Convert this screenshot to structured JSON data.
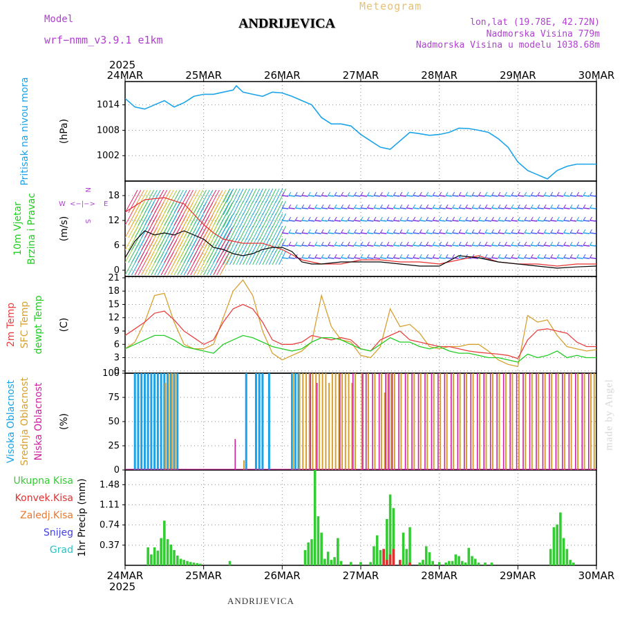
{
  "header": {
    "model_label": "Model",
    "model_name": "wrf−nmm_v3.9.1  e1km",
    "station": "ANDRIJEVICA",
    "product": "Meteogram",
    "lonlat": "lon,lat (19.78E, 42.72N)",
    "elevation": "Nadmorska Visina 779m",
    "model_elevation": "Nadmorska Visina u modelu 1038.68m",
    "footer_station": "ANDRIJEVICA",
    "watermark": "made by Angel"
  },
  "time_axis": {
    "year": "2025",
    "ticks": [
      "24MAR",
      "25MAR",
      "26MAR",
      "27MAR",
      "28MAR",
      "29MAR",
      "30MAR"
    ],
    "hours_total": 144
  },
  "colors": {
    "pressure": "#1aa3e8",
    "wind_speed": "#000000",
    "wind_gust": "#e83030",
    "temp_2m": "#e84040",
    "temp_sfc": "#d8a030",
    "temp_dew": "#22cc22",
    "cloud_high": "#1aa3e8",
    "cloud_mid": "#d8a030",
    "cloud_low": "#d020a0",
    "precip_total": "#33cc33",
    "precip_conv": "#e03030",
    "precip_frozen": "#e87830",
    "precip_snow": "#4040e0",
    "precip_hail": "#30c0c0",
    "label_model": "#b040d0"
  },
  "chart_data": [
    {
      "type": "line",
      "title": "",
      "ylabel": "(hPa)",
      "side_label": [
        "Pritisak na nivou mora"
      ],
      "ylim": [
        996,
        1019.5
      ],
      "yticks": [
        1002,
        1008,
        1014
      ],
      "grid": true,
      "series": [
        {
          "name": "Pritisak na nivou mora",
          "x": [
            0,
            3,
            6,
            9,
            12,
            15,
            18,
            21,
            24,
            27,
            30,
            33,
            34,
            36,
            39,
            42,
            45,
            48,
            51,
            54,
            57,
            60,
            63,
            66,
            69,
            72,
            75,
            78,
            81,
            84,
            87,
            90,
            93,
            96,
            99,
            102,
            105,
            108,
            111,
            114,
            117,
            120,
            123,
            126,
            129,
            132,
            135,
            138,
            141,
            144
          ],
          "y": [
            1015.5,
            1013.5,
            1013,
            1014,
            1015,
            1013.5,
            1014.5,
            1016,
            1016.5,
            1016.5,
            1017,
            1017.5,
            1018.5,
            1017,
            1016.5,
            1016,
            1017,
            1016.8,
            1016,
            1015,
            1014,
            1011,
            1009.5,
            1009.5,
            1009,
            1007,
            1005.5,
            1004,
            1003.5,
            1005.5,
            1007.5,
            1007.2,
            1006.8,
            1007,
            1007.5,
            1008.5,
            1008.4,
            1008,
            1007.5,
            1006,
            1004,
            1000.5,
            998.5,
            997.5,
            996.5,
            998.5,
            999.5,
            1000,
            1000,
            1000
          ]
        }
      ]
    },
    {
      "type": "line",
      "title": "",
      "ylabel": "(m/s)",
      "side_label": [
        "10m Vjetar",
        "Brzina i Pravac"
      ],
      "compass": {
        "n": "N",
        "s": "S",
        "w": "W",
        "e": "E"
      },
      "ylim": [
        -1.5,
        21.5
      ],
      "yticks": [
        0,
        6,
        12,
        18
      ],
      "grid": true,
      "series": [
        {
          "name": "wind speed",
          "x": [
            0,
            3,
            6,
            9,
            12,
            15,
            18,
            21,
            24,
            27,
            30,
            33,
            36,
            39,
            42,
            45,
            48,
            51,
            54,
            57,
            60,
            66,
            72,
            78,
            84,
            90,
            96,
            102,
            108,
            114,
            120,
            126,
            132,
            138,
            144
          ],
          "y": [
            3,
            7,
            9.5,
            8.5,
            9,
            8.5,
            9.5,
            8.5,
            7.5,
            5.5,
            5,
            4,
            3.5,
            4,
            5,
            5.5,
            5.5,
            4.5,
            2,
            1.5,
            1.5,
            2,
            2,
            2,
            1.5,
            1,
            1,
            3.5,
            3,
            2,
            1.5,
            1,
            0.5,
            0.8,
            1
          ]
        },
        {
          "name": "gust",
          "x": [
            0,
            6,
            12,
            18,
            24,
            27,
            30,
            36,
            42,
            48,
            54,
            60,
            66,
            72,
            78,
            84,
            90,
            96,
            102,
            108,
            114,
            120,
            126,
            132,
            138,
            144
          ],
          "y": [
            14,
            17,
            17.5,
            16,
            11,
            9,
            7.5,
            6.5,
            6.5,
            5,
            2.5,
            1.5,
            1.5,
            2.5,
            2.5,
            2,
            2,
            1.5,
            2.5,
            3.5,
            2,
            1.5,
            1.5,
            1,
            1.5,
            1.5
          ]
        }
      ]
    },
    {
      "type": "line",
      "title": "",
      "ylabel": "(C)",
      "side_label": [
        "2m Temp",
        "SFC Temp",
        "dewpt Temp"
      ],
      "ylim": [
        -0.5,
        21.3
      ],
      "yticks": [
        0,
        3,
        6,
        9,
        12,
        15,
        18,
        21
      ],
      "grid": true,
      "series": [
        {
          "name": "2m Temp",
          "x": [
            0,
            3,
            6,
            9,
            12,
            15,
            18,
            21,
            24,
            27,
            30,
            33,
            36,
            39,
            42,
            45,
            48,
            51,
            54,
            57,
            60,
            63,
            66,
            69,
            72,
            75,
            78,
            81,
            84,
            87,
            90,
            93,
            96,
            99,
            102,
            105,
            108,
            111,
            114,
            117,
            120,
            123,
            126,
            129,
            132,
            135,
            138,
            141,
            144
          ],
          "y": [
            8,
            9.5,
            11,
            13,
            13.5,
            11.5,
            9,
            7.5,
            6,
            7,
            11,
            14,
            15,
            14,
            11,
            7,
            6,
            6,
            6.5,
            8,
            7.5,
            7,
            7.5,
            7,
            5,
            4.5,
            7,
            8,
            9,
            7,
            6.5,
            6,
            5.5,
            5.5,
            5,
            4.5,
            4.2,
            4,
            3.8,
            3.5,
            2.8,
            7,
            9.2,
            9.5,
            9,
            8.5,
            6.5,
            5.5,
            5.5
          ]
        },
        {
          "name": "SFC Temp",
          "x": [
            0,
            3,
            6,
            9,
            12,
            15,
            18,
            21,
            24,
            27,
            30,
            33,
            36,
            39,
            42,
            45,
            48,
            51,
            54,
            57,
            60,
            63,
            66,
            69,
            72,
            75,
            78,
            81,
            84,
            87,
            90,
            93,
            96,
            99,
            102,
            105,
            108,
            111,
            114,
            117,
            120,
            123,
            126,
            129,
            132,
            135,
            138,
            141,
            144
          ],
          "y": [
            5,
            6.5,
            11,
            17,
            17.5,
            11,
            6,
            5,
            5,
            6,
            12,
            18,
            20.5,
            17,
            9,
            4,
            2.5,
            3.5,
            4.5,
            6.5,
            17,
            10,
            7,
            6.5,
            3.5,
            3,
            5.5,
            14,
            10,
            10.5,
            8.5,
            5.5,
            5,
            5.5,
            5.5,
            6,
            6,
            4.5,
            2.5,
            1.5,
            1,
            12.5,
            11,
            11.5,
            8,
            5.5,
            5,
            4.5,
            4.8
          ]
        },
        {
          "name": "dewpt Temp",
          "x": [
            0,
            3,
            6,
            9,
            12,
            15,
            18,
            21,
            24,
            27,
            30,
            33,
            36,
            39,
            42,
            45,
            48,
            51,
            54,
            57,
            60,
            63,
            66,
            69,
            72,
            75,
            78,
            81,
            84,
            87,
            90,
            93,
            96,
            99,
            102,
            105,
            108,
            111,
            114,
            117,
            120,
            123,
            126,
            129,
            132,
            135,
            138,
            141,
            144
          ],
          "y": [
            5,
            6,
            7,
            8,
            8,
            7,
            5.5,
            5,
            4.5,
            4,
            6,
            7,
            8,
            7.5,
            6.5,
            5.5,
            5,
            4.5,
            5,
            6.5,
            7.5,
            7.5,
            7,
            6,
            5,
            4.5,
            6,
            7.5,
            6.5,
            6.5,
            5.5,
            5,
            5.5,
            4.5,
            4,
            4,
            3.5,
            3,
            3,
            2.5,
            2,
            3.8,
            3,
            3.5,
            4.5,
            3,
            3.5,
            3,
            3
          ]
        }
      ]
    },
    {
      "type": "bar",
      "title": "",
      "ylabel": "(%)",
      "side_label": [
        "Visoka Oblacnost",
        "Srednja Oblacnost",
        "Niska Oblacnost"
      ],
      "ylim": [
        0,
        100
      ],
      "yticks": [
        0,
        25,
        50,
        75,
        100
      ],
      "grid": true,
      "series": [
        {
          "name": "Visoka Oblacnost",
          "x": [
            3,
            4,
            5,
            6,
            7,
            8,
            9,
            10,
            11,
            12,
            13,
            14,
            15,
            16,
            37,
            40,
            41,
            42,
            44,
            51,
            52,
            53
          ],
          "y": [
            100,
            100,
            100,
            100,
            100,
            100,
            100,
            100,
            100,
            100,
            100,
            100,
            100,
            100,
            100,
            100,
            100,
            100,
            100,
            100,
            100,
            100
          ]
        },
        {
          "name": "Srednja Oblacnost",
          "x": [
            12,
            13,
            14,
            15,
            36,
            51,
            53,
            54,
            55,
            56,
            57,
            58,
            59,
            60,
            61,
            62,
            63,
            64,
            65,
            66,
            67,
            68,
            69,
            70,
            72,
            74,
            76,
            78,
            79,
            80,
            81,
            82,
            84,
            86,
            88,
            90,
            92,
            94,
            96,
            98,
            100,
            102,
            104,
            106,
            108,
            110,
            112,
            114,
            116,
            118,
            120,
            122,
            124,
            126,
            128,
            130,
            132,
            134,
            136,
            138,
            140,
            142,
            143
          ],
          "y": [
            90,
            100,
            100,
            100,
            10,
            100,
            100,
            100,
            100,
            100,
            100,
            100,
            100,
            100,
            100,
            90,
            100,
            100,
            100,
            100,
            100,
            100,
            90,
            100,
            100,
            100,
            100,
            100,
            80,
            100,
            100,
            100,
            100,
            100,
            100,
            100,
            100,
            100,
            100,
            100,
            100,
            100,
            100,
            100,
            100,
            100,
            100,
            100,
            100,
            100,
            100,
            100,
            100,
            100,
            100,
            100,
            100,
            100,
            100,
            100,
            100,
            100,
            100
          ]
        },
        {
          "name": "Niska Oblacnost",
          "x": [
            33,
            56,
            58,
            65,
            69,
            72,
            73,
            75,
            77,
            79,
            80,
            81,
            83,
            85,
            87,
            89,
            91,
            93,
            95,
            97,
            99,
            101,
            103,
            105,
            107,
            109,
            111,
            113,
            115,
            117,
            119,
            121,
            123,
            125,
            127,
            129,
            131,
            133,
            135,
            137,
            139,
            141
          ],
          "y": [
            32,
            100,
            90,
            100,
            100,
            100,
            100,
            100,
            100,
            100,
            100,
            100,
            100,
            100,
            100,
            100,
            100,
            100,
            100,
            100,
            100,
            100,
            100,
            100,
            100,
            100,
            100,
            100,
            100,
            100,
            100,
            100,
            100,
            100,
            100,
            100,
            100,
            100,
            100,
            100,
            100,
            100
          ]
        }
      ]
    },
    {
      "type": "bar",
      "title": "",
      "ylabel": "1hr Precip (mm)",
      "side_label": [
        "Ukupna Kisa",
        "Konvek.Kisa",
        "Zaledj.Kisa",
        "Snijeg",
        "Grad"
      ],
      "ylim": [
        0,
        1.75
      ],
      "yticks": [
        0.37,
        0.74,
        1.11,
        1.48
      ],
      "grid": true,
      "series": [
        {
          "name": "Ukupna Kisa",
          "x": [
            7,
            8,
            9,
            10,
            11,
            12,
            13,
            14,
            15,
            16,
            17,
            18,
            19,
            20,
            21,
            22,
            23,
            32,
            55,
            56,
            57,
            58,
            59,
            60,
            61,
            62,
            63,
            64,
            65,
            66,
            69,
            72,
            75,
            76,
            77,
            78,
            79,
            80,
            81,
            82,
            85,
            86,
            87,
            90,
            91,
            92,
            93,
            94,
            96,
            98,
            99,
            100,
            101,
            102,
            103,
            104,
            105,
            106,
            107,
            108,
            110,
            112,
            130,
            131,
            132,
            133,
            134,
            135,
            136,
            137
          ],
          "y": [
            0.33,
            0.2,
            0.33,
            0.27,
            0.5,
            0.82,
            0.48,
            0.38,
            0.28,
            0.18,
            0.12,
            0.1,
            0.08,
            0.06,
            0.05,
            0.04,
            0.03,
            0.08,
            0.28,
            0.42,
            0.48,
            1.75,
            0.9,
            0.6,
            0.12,
            0.25,
            0.1,
            0.15,
            0.5,
            0.08,
            0.06,
            0.06,
            0.06,
            0.35,
            0.55,
            0.28,
            0.3,
            0.85,
            1.3,
            1.05,
            0.6,
            0.3,
            0.7,
            0.05,
            0.1,
            0.35,
            0.24,
            0.08,
            0.06,
            0.05,
            0.08,
            0.08,
            0.2,
            0.17,
            0.08,
            0.05,
            0.32,
            0.17,
            0.12,
            0.05,
            0.05,
            0.05,
            0.3,
            0.7,
            0.75,
            0.97,
            0.5,
            0.3,
            0.1,
            0.05
          ]
        },
        {
          "name": "Konvek.Kisa",
          "x": [
            79,
            80,
            81,
            82,
            84,
            87
          ],
          "y": [
            0.3,
            0.1,
            0.2,
            0.3,
            0.1,
            0.05
          ]
        },
        {
          "name": "Zaledj.Kisa",
          "x": [],
          "y": []
        },
        {
          "name": "Snijeg",
          "x": [],
          "y": []
        },
        {
          "name": "Grad",
          "x": [],
          "y": []
        }
      ]
    }
  ]
}
